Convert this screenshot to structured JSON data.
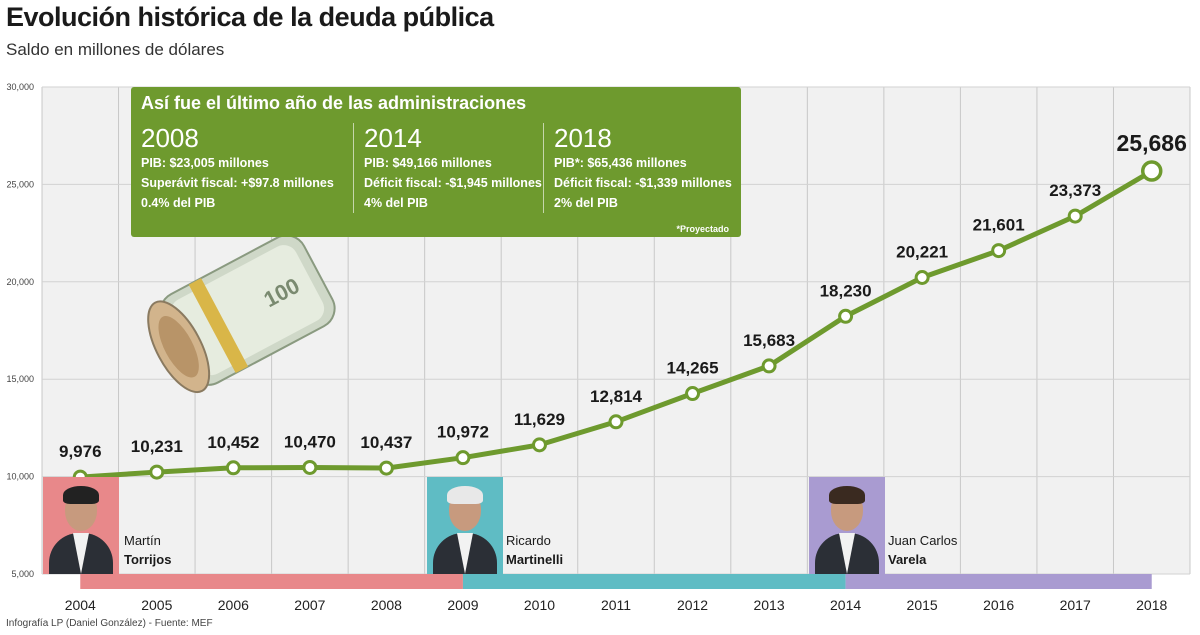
{
  "title": "Evolución histórica de la deuda pública",
  "subtitle": "Saldo en millones de dólares",
  "footer": "Infografía LP (Daniel González) - Fuente: MEF",
  "colors": {
    "line": "#6e9a2e",
    "infobox": "#6e9a2e",
    "torrijos": "#e8888a",
    "martinelli": "#5fbcc4",
    "varela": "#a99bd1"
  },
  "info_box": {
    "title": "Así fue el último año de las administraciones",
    "note": "*Proyectado",
    "columns": [
      {
        "year": "2008",
        "lines": [
          "PIB: $23,005 millones",
          "Superávit fiscal: +$97.8 millones",
          "0.4% del PIB"
        ]
      },
      {
        "year": "2014",
        "lines": [
          "PIB: $49,166 millones",
          "Déficit fiscal: -$1,945 millones",
          "4% del PIB"
        ]
      },
      {
        "year": "2018",
        "lines": [
          "PIB*: $65,436 millones",
          "Déficit fiscal: -$1,339 millones",
          "2% del PIB"
        ]
      }
    ]
  },
  "presidents": [
    {
      "first": "Martín",
      "last": "Torrijos",
      "icon": "portrait-torrijos"
    },
    {
      "first": "Ricardo",
      "last": "Martinelli",
      "icon": "portrait-martinelli"
    },
    {
      "first": "Juan Carlos",
      "last": "Varela",
      "icon": "portrait-varela"
    }
  ],
  "chart_data": {
    "type": "line",
    "title": "Evolución histórica de la deuda pública",
    "subtitle": "Saldo en millones de dólares",
    "categories": [
      "2004",
      "2005",
      "2006",
      "2007",
      "2008",
      "2009",
      "2010",
      "2011",
      "2012",
      "2013",
      "2014",
      "2015",
      "2016",
      "2017",
      "2018"
    ],
    "series": [
      {
        "values": [
          9976,
          10231,
          10452,
          10470,
          10437,
          10972,
          11629,
          12814,
          14265,
          15683,
          18230,
          20221,
          21601,
          23373,
          25686
        ]
      }
    ],
    "value_labels": [
      "9,976",
      "10,231",
      "10,452",
      "10,470",
      "10,437",
      "10,972",
      "11,629",
      "12,814",
      "14,265",
      "15,683",
      "18,230",
      "20,221",
      "21,601",
      "23,373",
      "25,686"
    ],
    "yticks": [
      "5,000",
      "10,000",
      "15,000",
      "20,000",
      "25,000",
      "30,000"
    ],
    "ylim": [
      5000,
      30000
    ],
    "grid": true,
    "administration_bands": [
      {
        "from": "2004",
        "to": "2009",
        "color": "#e8888a"
      },
      {
        "from": "2009",
        "to": "2014",
        "color": "#5fbcc4"
      },
      {
        "from": "2014",
        "to": "2018",
        "color": "#a99bd1"
      }
    ]
  }
}
